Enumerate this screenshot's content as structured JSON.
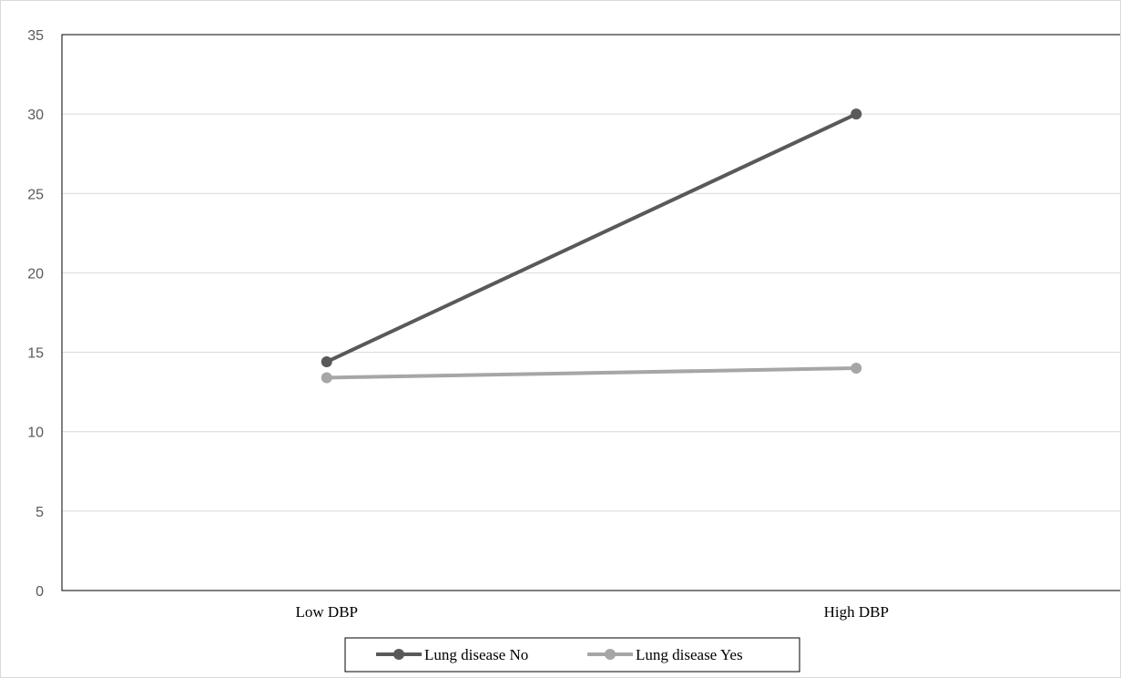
{
  "chart_data": {
    "type": "line",
    "categories": [
      "Low DBP",
      "High DBP"
    ],
    "series": [
      {
        "name": "Lung disease No",
        "values": [
          14.4,
          30.0
        ],
        "color": "#595959"
      },
      {
        "name": "Lung disease Yes",
        "values": [
          13.4,
          14.0
        ],
        "color": "#a6a6a6"
      }
    ],
    "ylim": [
      0,
      35
    ],
    "yticks": [
      "0",
      "5",
      "10",
      "15",
      "20",
      "25",
      "30",
      "35"
    ],
    "grid": true,
    "legend_position": "bottom",
    "title": "",
    "xlabel": "",
    "ylabel": ""
  }
}
